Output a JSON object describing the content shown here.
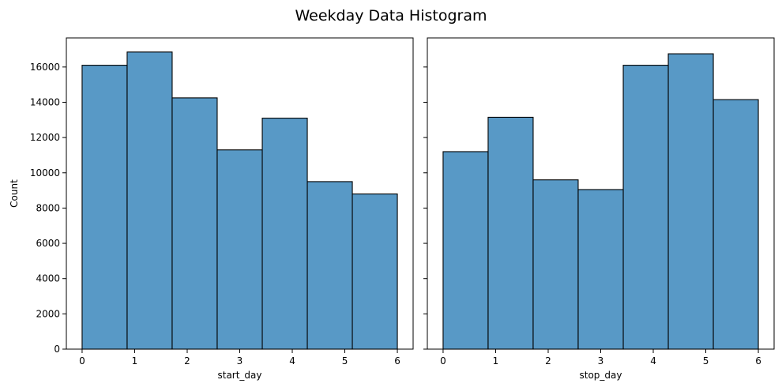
{
  "figure": {
    "title": "Weekday Data Histogram"
  },
  "colors": {
    "bar_fill": "#5899c6",
    "bar_edge": "#000000",
    "background": "#ffffff"
  },
  "chart_data": [
    {
      "type": "bar",
      "subtype": "histogram",
      "xlabel": "start_day",
      "ylabel": "Count",
      "xlim": [
        -0.3,
        6.3
      ],
      "ylim": [
        0,
        17650
      ],
      "xticks": [
        0,
        1,
        2,
        3,
        4,
        5,
        6
      ],
      "yticks": [
        0,
        2000,
        4000,
        6000,
        8000,
        10000,
        12000,
        14000,
        16000
      ],
      "bin_edges": [
        0,
        0.857,
        1.714,
        2.571,
        3.429,
        4.286,
        5.143,
        6
      ],
      "values": [
        16100,
        16850,
        14250,
        11300,
        13100,
        9500,
        8800
      ],
      "grid": false
    },
    {
      "type": "bar",
      "subtype": "histogram",
      "xlabel": "stop_day",
      "ylabel": "",
      "xlim": [
        -0.3,
        6.3
      ],
      "ylim": [
        0,
        17650
      ],
      "xticks": [
        0,
        1,
        2,
        3,
        4,
        5,
        6
      ],
      "yticks": [
        0,
        2000,
        4000,
        6000,
        8000,
        10000,
        12000,
        14000,
        16000
      ],
      "show_ytick_labels": false,
      "bin_edges": [
        0,
        0.857,
        1.714,
        2.571,
        3.429,
        4.286,
        5.143,
        6
      ],
      "values": [
        11200,
        13150,
        9600,
        9050,
        16100,
        16750,
        14150
      ],
      "grid": false
    }
  ]
}
